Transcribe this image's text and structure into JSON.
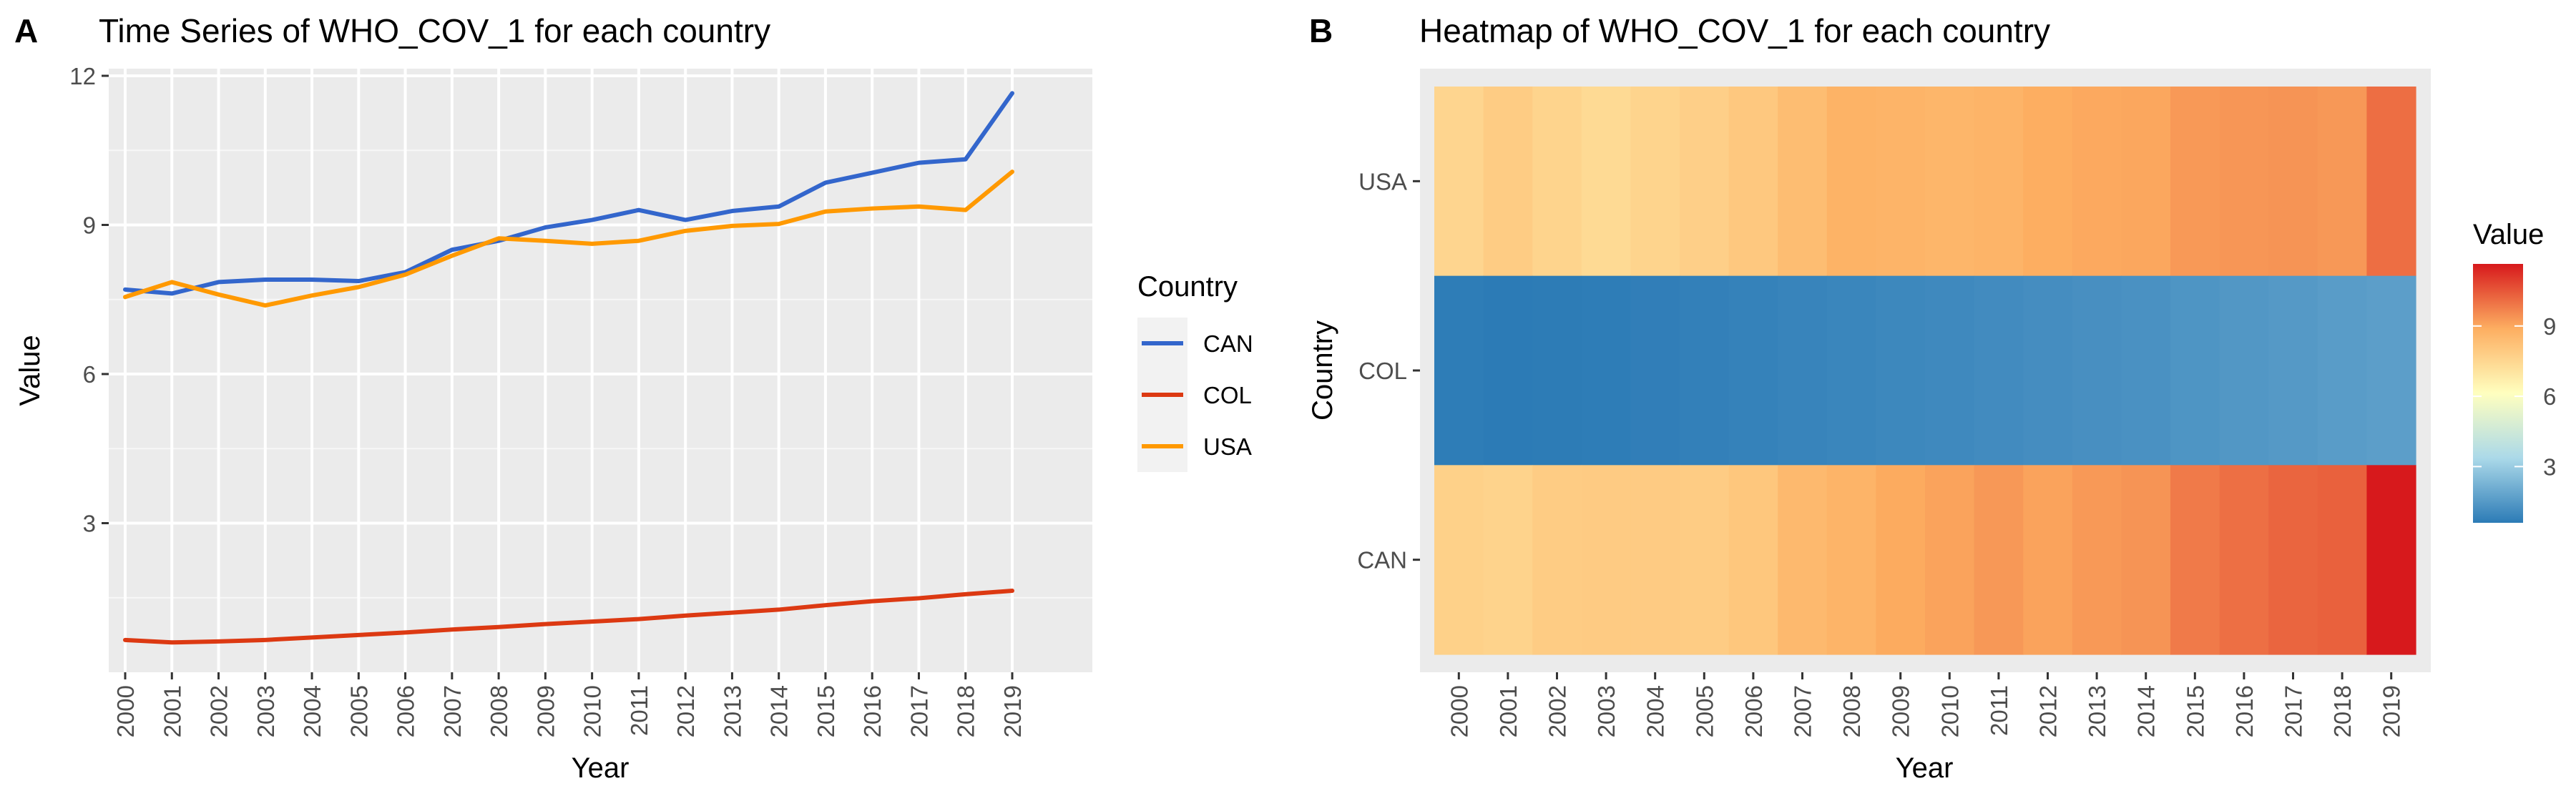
{
  "panels": [
    {
      "letter": "A",
      "title": "Time Series of WHO_COV_1 for each country"
    },
    {
      "letter": "B",
      "title": "Heatmap of WHO_COV_1 for each country"
    }
  ],
  "chart_data": [
    {
      "type": "line",
      "title": "Time Series of WHO_COV_1 for each country",
      "xlabel": "Year",
      "ylabel": "Value",
      "x": [
        "2000",
        "2001",
        "2002",
        "2003",
        "2004",
        "2005",
        "2006",
        "2007",
        "2008",
        "2009",
        "2010",
        "2011",
        "2012",
        "2013",
        "2014",
        "2015",
        "2016",
        "2017",
        "2018",
        "2019"
      ],
      "yticks": [
        3,
        6,
        9,
        12
      ],
      "ylim": [
        0.0,
        12.0
      ],
      "grid": true,
      "legend": {
        "title": "Country",
        "position": "right"
      },
      "series": [
        {
          "name": "CAN",
          "color": "#3366cc",
          "values": [
            7.7,
            7.62,
            7.85,
            7.9,
            7.9,
            7.87,
            8.05,
            8.5,
            8.68,
            8.95,
            9.1,
            9.3,
            9.1,
            9.28,
            9.37,
            9.85,
            10.05,
            10.25,
            10.32,
            11.65
          ]
        },
        {
          "name": "COL",
          "color": "#dc3912",
          "values": [
            0.65,
            0.6,
            0.62,
            0.65,
            0.7,
            0.75,
            0.8,
            0.86,
            0.91,
            0.97,
            1.02,
            1.07,
            1.14,
            1.2,
            1.26,
            1.35,
            1.43,
            1.49,
            1.57,
            1.64
          ]
        },
        {
          "name": "USA",
          "color": "#ff9900",
          "values": [
            7.55,
            7.85,
            7.6,
            7.38,
            7.58,
            7.75,
            8.0,
            8.38,
            8.73,
            8.68,
            8.62,
            8.68,
            8.88,
            8.98,
            9.02,
            9.27,
            9.33,
            9.37,
            9.3,
            10.07
          ]
        }
      ]
    },
    {
      "type": "heatmap",
      "title": "Heatmap of WHO_COV_1 for each country",
      "xlabel": "Year",
      "ylabel": "Country",
      "x": [
        "2000",
        "2001",
        "2002",
        "2003",
        "2004",
        "2005",
        "2006",
        "2007",
        "2008",
        "2009",
        "2010",
        "2011",
        "2012",
        "2013",
        "2014",
        "2015",
        "2016",
        "2017",
        "2018",
        "2019"
      ],
      "y": [
        "USA",
        "COL",
        "CAN"
      ],
      "values": [
        [
          7.55,
          7.85,
          7.6,
          7.38,
          7.58,
          7.75,
          8.0,
          8.38,
          8.73,
          8.68,
          8.62,
          8.68,
          8.88,
          8.98,
          9.02,
          9.27,
          9.33,
          9.37,
          9.3,
          10.07
        ],
        [
          0.65,
          0.6,
          0.62,
          0.65,
          0.7,
          0.75,
          0.8,
          0.86,
          0.91,
          0.97,
          1.02,
          1.07,
          1.14,
          1.2,
          1.26,
          1.35,
          1.43,
          1.49,
          1.57,
          1.64
        ],
        [
          7.7,
          7.62,
          7.85,
          7.9,
          7.9,
          7.87,
          8.05,
          8.5,
          8.68,
          8.95,
          9.1,
          9.3,
          9.1,
          9.28,
          9.37,
          9.85,
          10.05,
          10.25,
          10.32,
          11.65
        ]
      ],
      "colorbar": {
        "title": "Value",
        "ticks": [
          3,
          6,
          9
        ],
        "range": [
          0.6,
          11.65
        ],
        "position": "right"
      },
      "palette": [
        "#2c7bb6",
        "#abd9e9",
        "#ffffbf",
        "#fdae61",
        "#d7191c"
      ]
    }
  ]
}
